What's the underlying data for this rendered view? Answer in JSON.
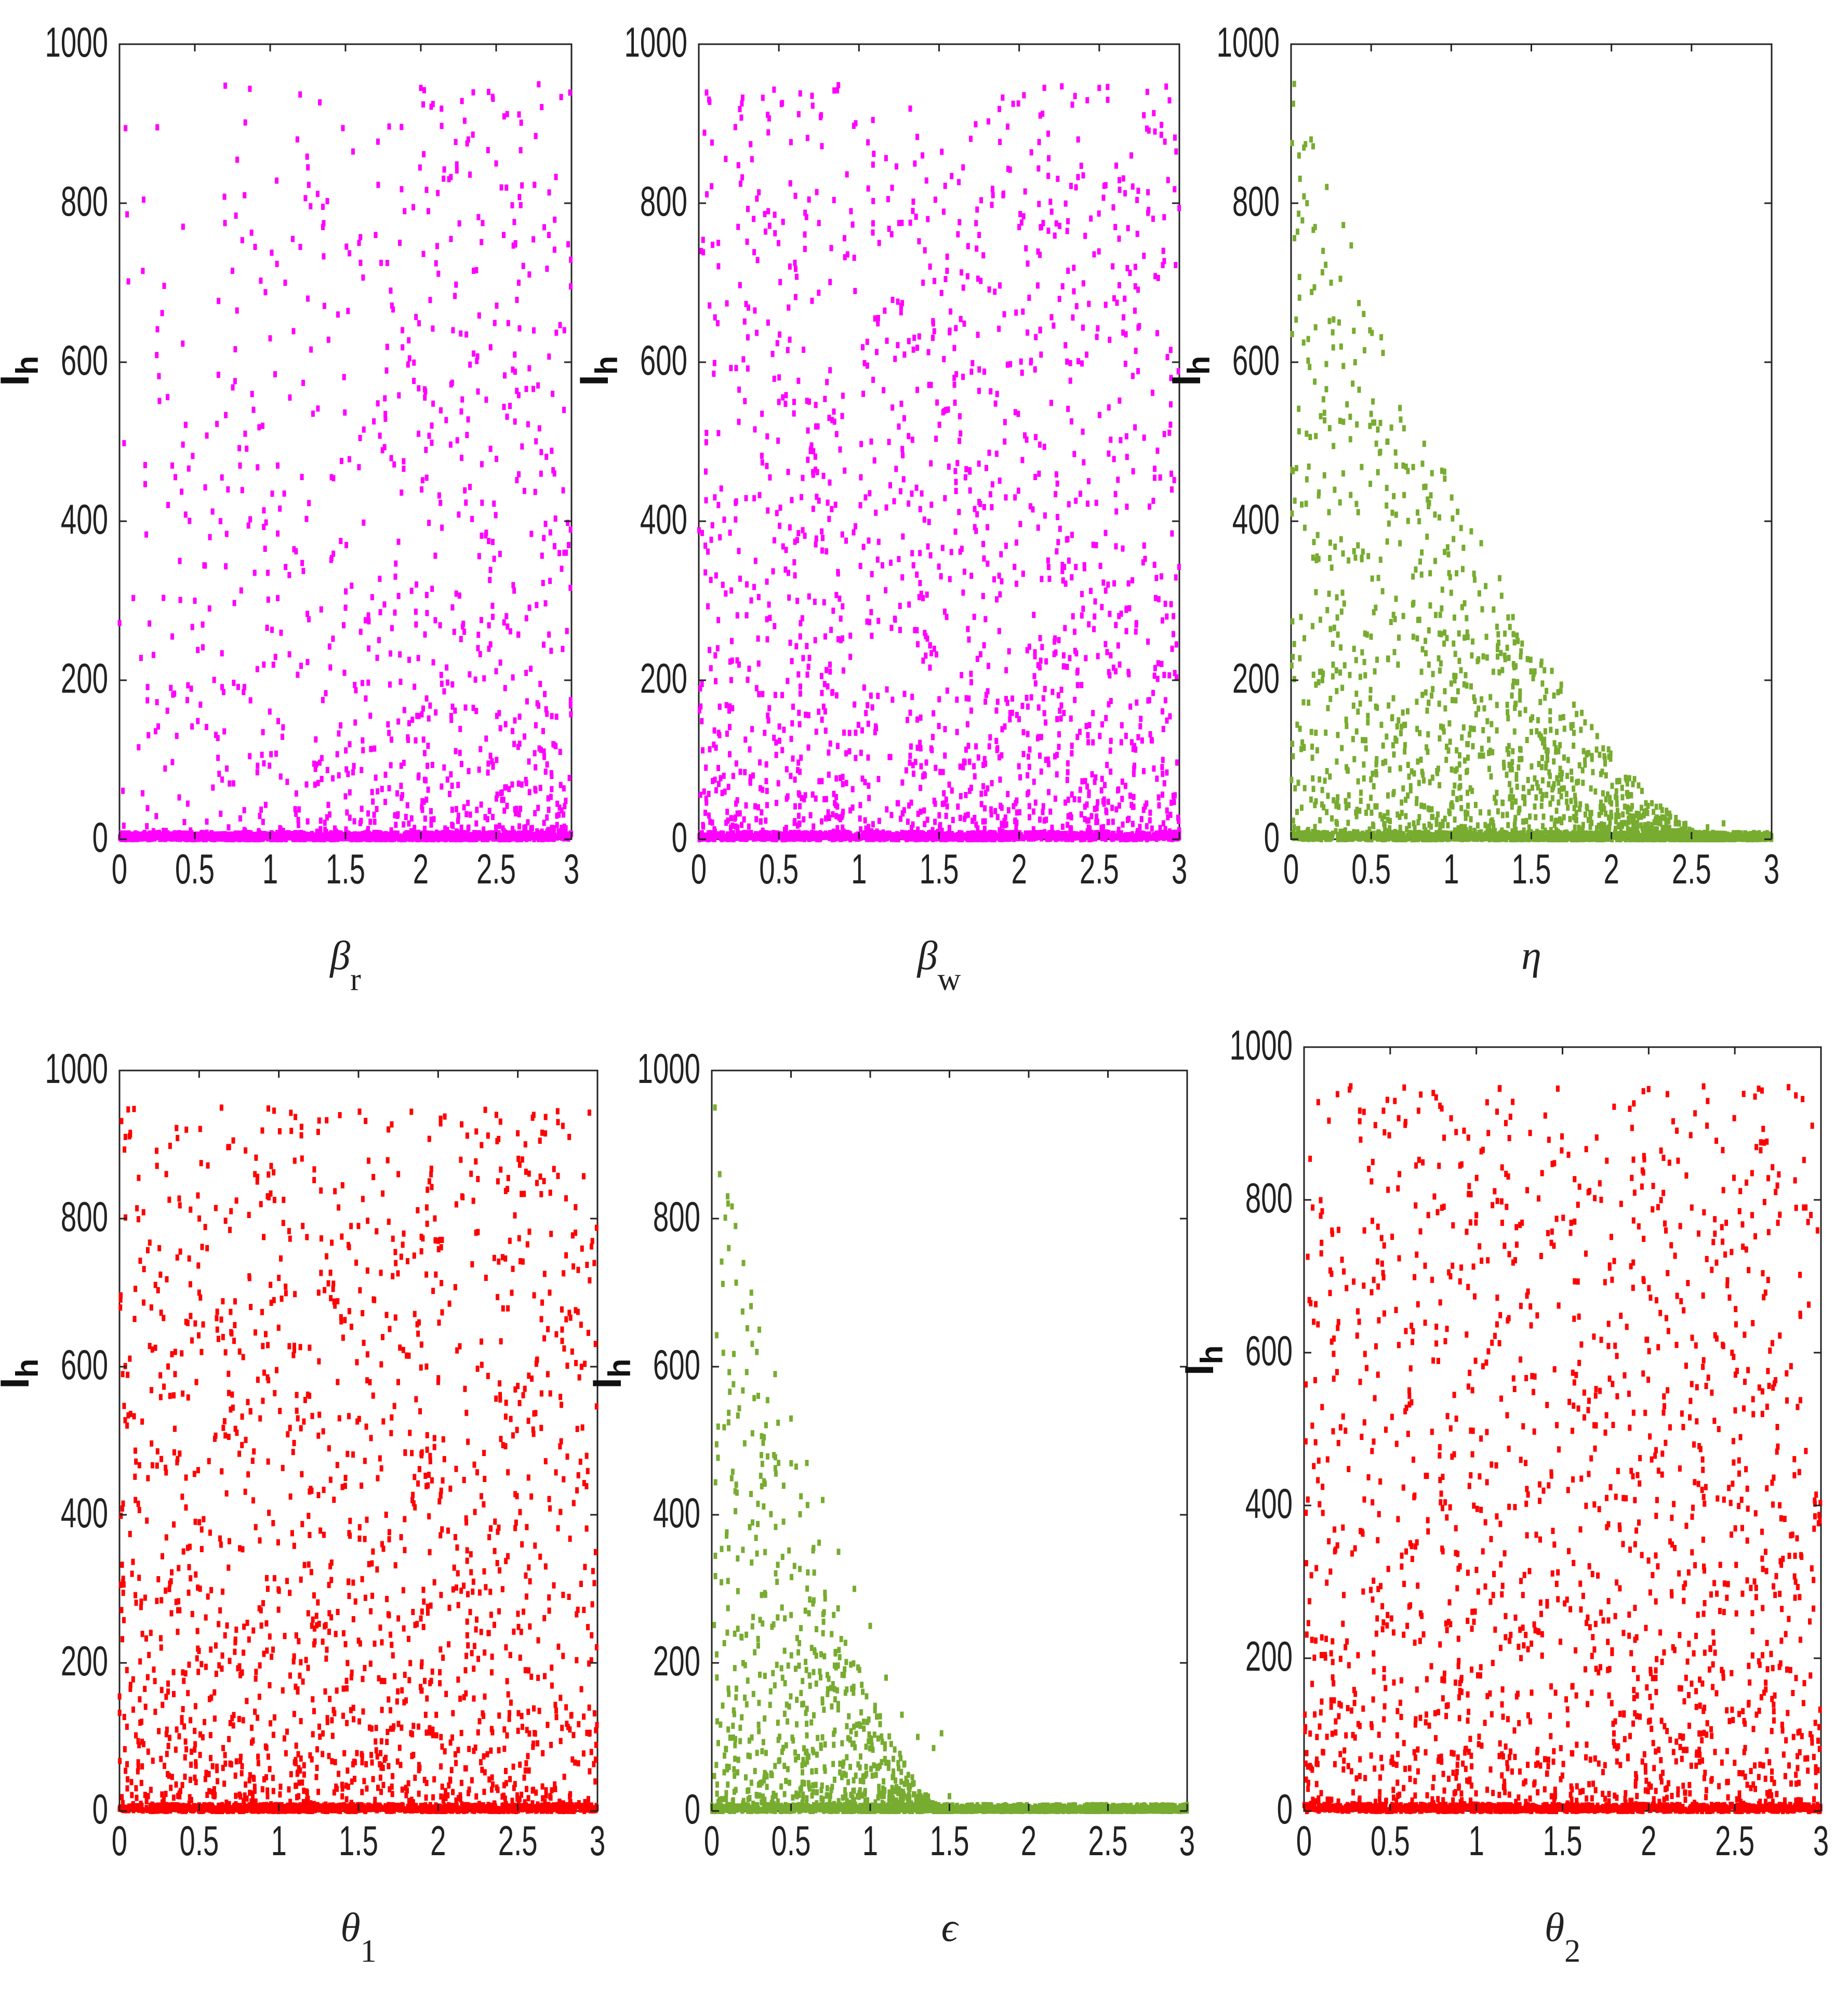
{
  "figure": "Scatter plots of I_h against six parameters",
  "chart_data": [
    {
      "type": "scatter",
      "xlabel": "β",
      "xlabel_sub": "r",
      "ylabel": "I",
      "ylabel_sub": "h",
      "xlim": [
        0,
        3
      ],
      "ylim": [
        0,
        1000
      ],
      "xticks": [
        "0",
        "0.5",
        "1",
        "1.5",
        "2",
        "2.5",
        "3"
      ],
      "yticks": [
        "0",
        "200",
        "400",
        "600",
        "800",
        "1000"
      ],
      "color": "#ff00ff",
      "pattern": "increasing-spread",
      "series": [
        {
          "values": [
            [
              0.35,
              470
            ],
            [
              0.35,
              255
            ],
            [
              0.38,
              130
            ],
            [
              0.4,
              350
            ],
            [
              0.45,
              175
            ],
            [
              0.5,
              300
            ],
            [
              0.6,
              380
            ],
            [
              0.62,
              65
            ],
            [
              0.68,
              455
            ],
            [
              0.7,
              775
            ],
            [
              0.72,
              440
            ],
            [
              0.75,
              715
            ],
            [
              0.78,
              665
            ],
            [
              0.8,
              470
            ],
            [
              0.83,
              810
            ],
            [
              0.88,
              560
            ],
            [
              0.9,
              745
            ],
            [
              0.95,
              520
            ],
            [
              1.0,
              630
            ],
            [
              1.05,
              470
            ],
            [
              1.1,
              700
            ],
            [
              1.15,
              755
            ],
            [
              1.2,
              745
            ],
            [
              1.25,
              680
            ],
            [
              1.35,
              770
            ],
            [
              1.45,
              660
            ],
            [
              1.55,
              865
            ],
            [
              1.6,
              725
            ],
            [
              1.7,
              760
            ],
            [
              1.8,
              690
            ],
            [
              1.95,
              795
            ],
            [
              2.0,
              945
            ],
            [
              2.05,
              790
            ],
            [
              2.2,
              755
            ],
            [
              2.35,
              715
            ],
            [
              2.45,
              940
            ],
            [
              2.5,
              850
            ],
            [
              2.55,
              760
            ],
            [
              2.65,
              700
            ],
            [
              2.75,
              640
            ],
            [
              2.85,
              760
            ],
            [
              2.95,
              540
            ]
          ]
        }
      ],
      "density": "points concentrate toward 0 with dense band at I_h≈0"
    },
    {
      "type": "scatter",
      "xlabel": "β",
      "xlabel_sub": "w",
      "ylabel": "I",
      "ylabel_sub": "h",
      "xlim": [
        0,
        3
      ],
      "ylim": [
        0,
        1000
      ],
      "xticks": [
        "0",
        "0.5",
        "1",
        "1.5",
        "2",
        "2.5",
        "3"
      ],
      "yticks": [
        "0",
        "200",
        "400",
        "600",
        "800",
        "1000"
      ],
      "color": "#ff00ff",
      "pattern": "uniform-spread",
      "series": [
        {
          "values": [
            [
              0.1,
              430
            ],
            [
              0.15,
              320
            ],
            [
              0.25,
              525
            ],
            [
              0.35,
              665
            ],
            [
              0.5,
              550
            ],
            [
              0.6,
              725
            ],
            [
              0.75,
              775
            ],
            [
              0.8,
              575
            ],
            [
              0.95,
              790
            ],
            [
              1.1,
              655
            ],
            [
              1.25,
              775
            ],
            [
              1.4,
              700
            ],
            [
              1.55,
              715
            ],
            [
              1.65,
              845
            ],
            [
              1.75,
              760
            ],
            [
              1.9,
              810
            ],
            [
              2.0,
              770
            ],
            [
              2.15,
              775
            ],
            [
              2.3,
              765
            ],
            [
              2.4,
              835
            ],
            [
              2.5,
              945
            ],
            [
              2.6,
              770
            ],
            [
              2.7,
              860
            ],
            [
              2.8,
              940
            ],
            [
              2.9,
              740
            ],
            [
              2.98,
              865
            ]
          ]
        }
      ],
      "density": "uniform across x with dense band at I_h≈0"
    },
    {
      "type": "scatter",
      "xlabel": "η",
      "xlabel_sub": "",
      "ylabel": "I",
      "ylabel_sub": "h",
      "xlim": [
        0,
        3
      ],
      "ylim": [
        0,
        1000
      ],
      "xticks": [
        "0",
        "0.5",
        "1",
        "1.5",
        "2",
        "2.5",
        "3"
      ],
      "yticks": [
        "0",
        "200",
        "400",
        "600",
        "800",
        "1000"
      ],
      "color": "#77ac30",
      "pattern": "decaying",
      "series": [
        {
          "values": [
            [
              0.02,
              950
            ],
            [
              0.05,
              860
            ],
            [
              0.08,
              870
            ],
            [
              0.1,
              800
            ],
            [
              0.15,
              770
            ],
            [
              0.2,
              740
            ],
            [
              0.25,
              700
            ],
            [
              0.3,
              650
            ],
            [
              0.4,
              600
            ],
            [
              0.5,
              535
            ],
            [
              0.6,
              500
            ],
            [
              0.7,
              470
            ],
            [
              0.8,
              400
            ],
            [
              0.9,
              350
            ],
            [
              1.0,
              310
            ],
            [
              1.1,
              260
            ],
            [
              1.2,
              230
            ],
            [
              1.3,
              210
            ],
            [
              1.4,
              170
            ],
            [
              1.5,
              135
            ],
            [
              1.6,
              100
            ],
            [
              1.75,
              85
            ],
            [
              1.9,
              60
            ],
            [
              2.0,
              45
            ],
            [
              2.1,
              40
            ],
            [
              2.2,
              30
            ],
            [
              2.4,
              20
            ],
            [
              2.6,
              15
            ],
            [
              2.7,
              20
            ]
          ]
        }
      ],
      "density": "upper envelope decays from ~950 at 0 to ~0 near 2.7"
    },
    {
      "type": "scatter",
      "xlabel": "θ",
      "xlabel_sub": "1",
      "ylabel": "I",
      "ylabel_sub": "h",
      "xlim": [
        0,
        3
      ],
      "ylim": [
        0,
        1000
      ],
      "xticks": [
        "0",
        "0.5",
        "1",
        "1.5",
        "2",
        "2.5",
        "3"
      ],
      "yticks": [
        "0",
        "200",
        "400",
        "600",
        "800",
        "1000"
      ],
      "color": "#ff0000",
      "pattern": "uniform-spread",
      "series": [
        {
          "values": [
            [
              0.02,
              590
            ],
            [
              0.1,
              420
            ],
            [
              0.2,
              680
            ],
            [
              0.25,
              760
            ],
            [
              0.35,
              620
            ],
            [
              0.5,
              700
            ],
            [
              0.55,
              760
            ],
            [
              0.65,
              640
            ],
            [
              0.7,
              810
            ],
            [
              0.85,
              860
            ],
            [
              1.0,
              720
            ],
            [
              1.15,
              790
            ],
            [
              1.25,
              700
            ],
            [
              1.4,
              845
            ],
            [
              1.5,
              790
            ],
            [
              1.6,
              690
            ],
            [
              1.75,
              860
            ],
            [
              1.85,
              750
            ],
            [
              2.0,
              770
            ],
            [
              2.15,
              830
            ],
            [
              2.3,
              720
            ],
            [
              2.45,
              770
            ],
            [
              2.6,
              940
            ],
            [
              2.7,
              700
            ],
            [
              2.75,
              945
            ],
            [
              2.9,
              600
            ],
            [
              2.98,
              740
            ]
          ]
        }
      ],
      "density": "uniform across x with dense band at I_h≈0"
    },
    {
      "type": "scatter",
      "xlabel": "ϵ",
      "xlabel_sub": "",
      "ylabel": "I",
      "ylabel_sub": "h",
      "xlim": [
        0,
        3
      ],
      "ylim": [
        0,
        1000
      ],
      "xticks": [
        "0",
        "0.5",
        "1",
        "1.5",
        "2",
        "2.5",
        "3"
      ],
      "yticks": [
        "0",
        "200",
        "400",
        "600",
        "800",
        "1000"
      ],
      "color": "#77ac30",
      "pattern": "decaying-fast",
      "series": [
        {
          "values": [
            [
              0.02,
              950
            ],
            [
              0.05,
              860
            ],
            [
              0.1,
              830
            ],
            [
              0.15,
              790
            ],
            [
              0.2,
              740
            ],
            [
              0.25,
              700
            ],
            [
              0.3,
              650
            ],
            [
              0.4,
              590
            ],
            [
              0.5,
              530
            ],
            [
              0.6,
              470
            ],
            [
              0.7,
              420
            ],
            [
              0.8,
              350
            ],
            [
              0.9,
              300
            ],
            [
              1.0,
              250
            ],
            [
              1.1,
              180
            ],
            [
              1.2,
              130
            ],
            [
              1.3,
              100
            ],
            [
              1.4,
              85
            ],
            [
              1.45,
              105
            ],
            [
              1.5,
              20
            ]
          ]
        }
      ],
      "density": "upper envelope decays from ~950 at 0 to ~0 near 1.5"
    },
    {
      "type": "scatter",
      "xlabel": "θ",
      "xlabel_sub": "2",
      "ylabel": "I",
      "ylabel_sub": "h",
      "xlim": [
        0,
        3
      ],
      "ylim": [
        0,
        1000
      ],
      "xticks": [
        "0",
        "0.5",
        "1",
        "1.5",
        "2",
        "2.5",
        "3"
      ],
      "yticks": [
        "0",
        "200",
        "400",
        "600",
        "800",
        "1000"
      ],
      "color": "#ff0000",
      "pattern": "uniform-spread",
      "series": [
        {
          "values": [
            [
              0.05,
              790
            ],
            [
              0.1,
              730
            ],
            [
              0.2,
              640
            ],
            [
              0.35,
              760
            ],
            [
              0.45,
              750
            ],
            [
              0.55,
              610
            ],
            [
              0.65,
              845
            ],
            [
              0.75,
              940
            ],
            [
              0.85,
              700
            ],
            [
              1.0,
              780
            ],
            [
              1.15,
              770
            ],
            [
              1.3,
              680
            ],
            [
              1.45,
              740
            ],
            [
              1.55,
              770
            ],
            [
              1.65,
              810
            ],
            [
              1.8,
              720
            ],
            [
              2.0,
              945
            ],
            [
              2.1,
              760
            ],
            [
              2.25,
              790
            ],
            [
              2.45,
              770
            ],
            [
              2.6,
              835
            ],
            [
              2.65,
              865
            ],
            [
              2.75,
              770
            ],
            [
              2.9,
              790
            ],
            [
              2.98,
              760
            ]
          ]
        }
      ],
      "density": "uniform across x with dense band at I_h≈0"
    }
  ]
}
